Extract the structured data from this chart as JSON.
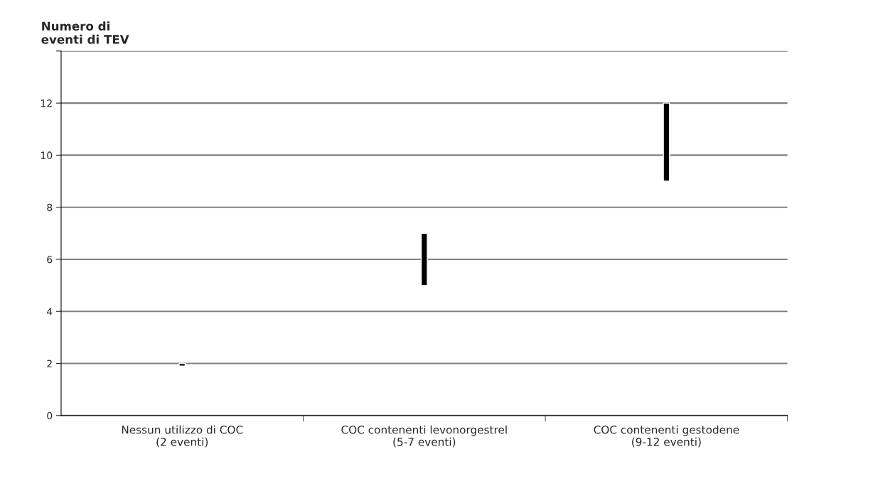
{
  "chart_data": {
    "type": "bar",
    "ylabel": "Numero di\neventi di TEV",
    "categories": [
      "Nessun utilizzo di COC\n(2 eventi)",
      "COC contenenti levonorgestrel\n(5-7 eventi)",
      "COC contenenti gestodene\n(9-12 eventi)"
    ],
    "base": [
      1.9,
      5,
      9
    ],
    "values": [
      0.1,
      2,
      3
    ],
    "color": "#000000",
    "ylim": [
      0,
      14
    ],
    "yticks": [
      0,
      2,
      4,
      6,
      8,
      10,
      12,
      {
        "value": 14,
        "label": null
      }
    ],
    "grid": "y"
  }
}
